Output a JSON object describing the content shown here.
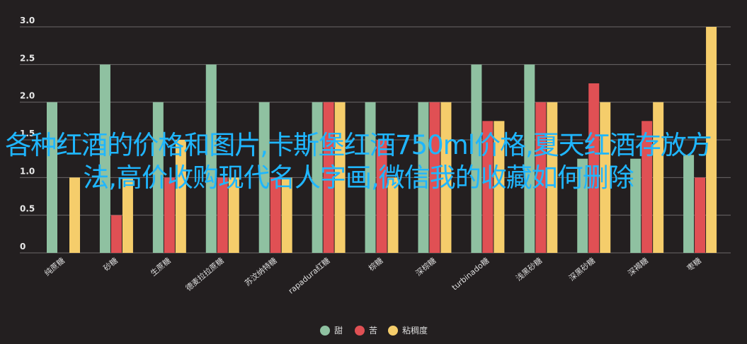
{
  "chart_data": {
    "type": "bar",
    "categories": [
      "纯蔗糖",
      "砂糖",
      "生蔗糖",
      "德麦拉拉蔗糖",
      "苏汶纳特糖",
      "rapadura红糖",
      "棕糖",
      "深棕糖",
      "turbinado糖",
      "浅黑砂糖",
      "深黑砂糖",
      "深褐糖",
      "枣糖"
    ],
    "series": [
      {
        "name": "甜",
        "color": "#8fc1a1",
        "values": [
          2.0,
          2.5,
          2.0,
          2.5,
          2.0,
          2.0,
          2.0,
          2.0,
          2.5,
          2.5,
          1.25,
          1.25,
          1.3
        ]
      },
      {
        "name": "苦",
        "color": "#e05054",
        "values": [
          0,
          0.5,
          1.0,
          1.0,
          1.0,
          2.0,
          1.5,
          2.0,
          1.75,
          2.0,
          2.25,
          1.75,
          1.0
        ]
      },
      {
        "name": "粘稠度",
        "color": "#f5cd6b",
        "values": [
          1.0,
          1.0,
          1.5,
          1.0,
          1.0,
          2.0,
          1.0,
          2.0,
          1.75,
          2.0,
          2.0,
          2.0,
          3.0
        ]
      }
    ],
    "yticks": [
      "3.0",
      "2.5",
      "2.0",
      "1.5",
      "1.0",
      "0.5",
      "0"
    ],
    "ylim": [
      0,
      3.0
    ],
    "grid": true,
    "legend": "bottom-center"
  },
  "overlay_text": "各种红酒的价格和图片,卡斯堡红酒750ml价格,夏天红酒存放方法,高价收购现代名人字画,微信我的收藏如何删除"
}
